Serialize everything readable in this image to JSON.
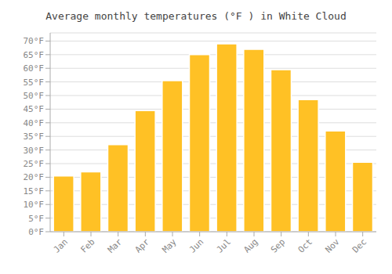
{
  "chart_data": {
    "type": "bar",
    "title": "Average monthly temperatures (°F ) in White Cloud",
    "categories": [
      "Jan",
      "Feb",
      "Mar",
      "Apr",
      "May",
      "Jun",
      "Jul",
      "Aug",
      "Sep",
      "Oct",
      "Nov",
      "Dec"
    ],
    "values": [
      20.5,
      22,
      32,
      44.5,
      55.5,
      65,
      69,
      67,
      59.5,
      48.5,
      37,
      25.5
    ],
    "color": "#FFC125",
    "ylim": [
      0,
      73
    ],
    "yticks": [
      {
        "value": 0,
        "label": "0°F"
      },
      {
        "value": 5,
        "label": "5°F"
      },
      {
        "value": 10,
        "label": "10°F"
      },
      {
        "value": 15,
        "label": "15°F"
      },
      {
        "value": 20,
        "label": "20°F"
      },
      {
        "value": 25,
        "label": "25°F"
      },
      {
        "value": 30,
        "label": "30°F"
      },
      {
        "value": 35,
        "label": "35°F"
      },
      {
        "value": 40,
        "label": "40°F"
      },
      {
        "value": 45,
        "label": "45°F"
      },
      {
        "value": 50,
        "label": "50°F"
      },
      {
        "value": 55,
        "label": "55°F"
      },
      {
        "value": 60,
        "label": "60°F"
      },
      {
        "value": 65,
        "label": "65°F"
      },
      {
        "value": 70,
        "label": "70°F"
      }
    ],
    "grid": true
  }
}
